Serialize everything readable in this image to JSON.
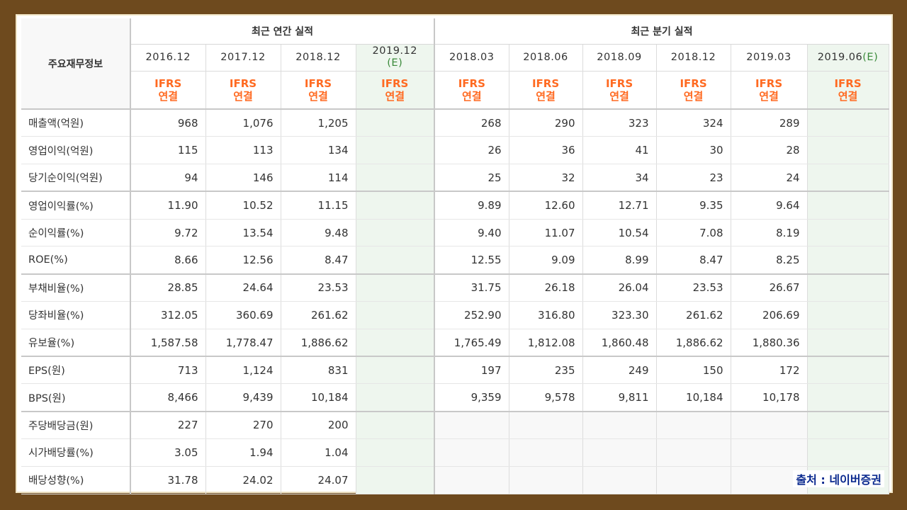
{
  "header": {
    "corner_label": "주요재무정보",
    "annual_group": "최근 연간 실적",
    "quarter_group": "최근 분기 실적",
    "basis_line1": "IFRS",
    "basis_line2": "연결"
  },
  "periods": [
    {
      "label": "2016.12",
      "est": "",
      "estimate": false,
      "quarterly": false
    },
    {
      "label": "2017.12",
      "est": "",
      "estimate": false,
      "quarterly": false
    },
    {
      "label": "2018.12",
      "est": "",
      "estimate": false,
      "quarterly": false
    },
    {
      "label": "2019.12",
      "est": "(E)",
      "estimate": true,
      "quarterly": false
    },
    {
      "label": "2018.03",
      "est": "",
      "estimate": false,
      "quarterly": true
    },
    {
      "label": "2018.06",
      "est": "",
      "estimate": false,
      "quarterly": true
    },
    {
      "label": "2018.09",
      "est": "",
      "estimate": false,
      "quarterly": true
    },
    {
      "label": "2018.12",
      "est": "",
      "estimate": false,
      "quarterly": true
    },
    {
      "label": "2019.03",
      "est": "",
      "estimate": false,
      "quarterly": true
    },
    {
      "label": "2019.06",
      "est": "(E)",
      "estimate": true,
      "quarterly": true
    }
  ],
  "rows": [
    {
      "label": "매출액(억원)",
      "values": [
        "968",
        "1,076",
        "1,205",
        "",
        "268",
        "290",
        "323",
        "324",
        "289",
        ""
      ]
    },
    {
      "label": "영업이익(억원)",
      "values": [
        "115",
        "113",
        "134",
        "",
        "26",
        "36",
        "41",
        "30",
        "28",
        ""
      ]
    },
    {
      "label": "당기순이익(억원)",
      "values": [
        "94",
        "146",
        "114",
        "",
        "25",
        "32",
        "34",
        "23",
        "24",
        ""
      ]
    },
    {
      "label": "영업이익률(%)",
      "values": [
        "11.90",
        "10.52",
        "11.15",
        "",
        "9.89",
        "12.60",
        "12.71",
        "9.35",
        "9.64",
        ""
      ]
    },
    {
      "label": "순이익률(%)",
      "values": [
        "9.72",
        "13.54",
        "9.48",
        "",
        "9.40",
        "11.07",
        "10.54",
        "7.08",
        "8.19",
        ""
      ]
    },
    {
      "label": "ROE(%)",
      "values": [
        "8.66",
        "12.56",
        "8.47",
        "",
        "12.55",
        "9.09",
        "8.99",
        "8.47",
        "8.25",
        ""
      ]
    },
    {
      "label": "부채비율(%)",
      "values": [
        "28.85",
        "24.64",
        "23.53",
        "",
        "31.75",
        "26.18",
        "26.04",
        "23.53",
        "26.67",
        ""
      ]
    },
    {
      "label": "당좌비율(%)",
      "values": [
        "312.05",
        "360.69",
        "261.62",
        "",
        "252.90",
        "316.80",
        "323.30",
        "261.62",
        "206.69",
        ""
      ]
    },
    {
      "label": "유보율(%)",
      "values": [
        "1,587.58",
        "1,778.47",
        "1,886.62",
        "",
        "1,765.49",
        "1,812.08",
        "1,860.48",
        "1,886.62",
        "1,880.36",
        ""
      ]
    },
    {
      "label": "EPS(원)",
      "values": [
        "713",
        "1,124",
        "831",
        "",
        "197",
        "235",
        "249",
        "150",
        "172",
        ""
      ]
    },
    {
      "label": "BPS(원)",
      "values": [
        "8,466",
        "9,439",
        "10,184",
        "",
        "9,359",
        "9,578",
        "9,811",
        "10,184",
        "10,178",
        ""
      ]
    },
    {
      "label": "주당배당금(원)",
      "values": [
        "227",
        "270",
        "200",
        "",
        "",
        "",
        "",
        "",
        "",
        ""
      ]
    },
    {
      "label": "시가배당률(%)",
      "values": [
        "3.05",
        "1.94",
        "1.04",
        "",
        "",
        "",
        "",
        "",
        "",
        ""
      ]
    },
    {
      "label": "배당성향(%)",
      "values": [
        "31.78",
        "24.02",
        "24.07",
        "",
        "",
        "",
        "",
        "",
        "",
        ""
      ]
    }
  ],
  "section_break_after": [
    2,
    5,
    8,
    10
  ],
  "source": "출처 : 네이버증권",
  "colors": {
    "frame": "#6e4a1e",
    "ifrs": "#ff6a21",
    "estimate_bg": "#eef6ee",
    "source_text": "#0b2a8f"
  }
}
